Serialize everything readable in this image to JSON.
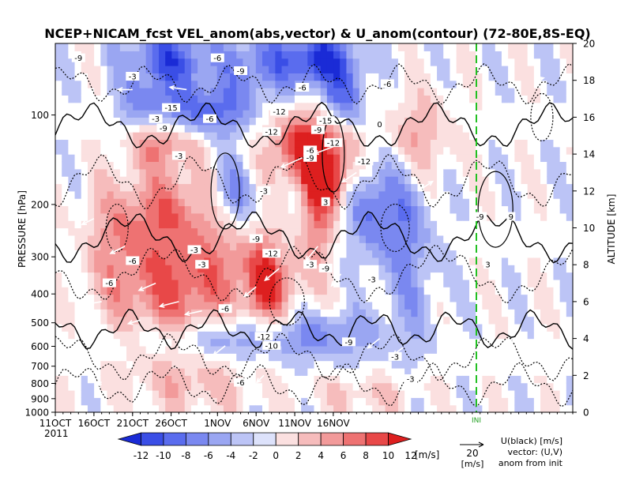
{
  "chart_data": {
    "type": "heatmap",
    "title": "NCEP+NICAM_fcst VEL_anom(abs,vector) & U_anom(contour)   (72-80E,8S-EQ)",
    "ylabel_left": "PRESSURE [hPa]",
    "ylabel_right": "ALTITUDE [km]",
    "pressure_ticks": [
      1000,
      900,
      800,
      700,
      600,
      500,
      400,
      300,
      200,
      100
    ],
    "altitude_ticks": [
      0,
      2,
      4,
      6,
      8,
      10,
      12,
      14,
      16,
      18,
      20
    ],
    "x_ticks": [
      "11OCT",
      "16OCT",
      "21OCT",
      "26OCT",
      "1NOV",
      "6NOV",
      "11NOV",
      "16NOV"
    ],
    "year_label": "2011",
    "init_marker_label": "INI",
    "colorbar": {
      "ticks": [
        "-12",
        "-10",
        "-8",
        "-6",
        "-4",
        "-2",
        "0",
        "2",
        "4",
        "6",
        "8",
        "10",
        "12"
      ],
      "unit": "[m/s]",
      "colors": [
        "#1a2bd6",
        "#3a4ee6",
        "#5a6cee",
        "#7a88f0",
        "#9aa6f2",
        "#bcc4f6",
        "#dde2fb",
        "#fbe0e0",
        "#f6bcbc",
        "#f29a9a",
        "#ee7272",
        "#e84848",
        "#dd1f1f"
      ]
    },
    "vector_ref": {
      "value": "20",
      "unit": "[m/s]"
    },
    "legend_lines": [
      "U(black) [m/s]",
      "vector: (U,V)",
      "anom from init"
    ],
    "contour_labels": [
      "-9",
      "-3",
      "-6",
      "-9",
      "-6",
      "-6",
      "-3",
      "-6",
      "-15",
      "-9",
      "-12",
      "-3",
      "-12",
      "-6",
      "-9",
      "-12",
      "-15",
      "-9",
      "-12",
      "-3",
      "3",
      "-9",
      "-6",
      "-3",
      "-9",
      "-12",
      "-3",
      "-6",
      "-3",
      "-9",
      "-6",
      "-3",
      "-10",
      "-12",
      "-9",
      "-3",
      "-6",
      "-3",
      "0",
      "3",
      "9"
    ],
    "fields": {
      "blobs": [
        {
          "day": 15,
          "alt": 19.2,
          "val": -9,
          "sx": 4.0,
          "sy": 1.1
        },
        {
          "day": 26,
          "alt": 18.8,
          "val": -6,
          "sx": 3.0,
          "sy": 1.2
        },
        {
          "day": 34,
          "alt": 19.2,
          "val": -11,
          "sx": 3.5,
          "sy": 1.0
        },
        {
          "day": 37,
          "alt": 17.0,
          "val": -7,
          "sx": 2.5,
          "sy": 1.2
        },
        {
          "day": 20,
          "alt": 16.4,
          "val": -8,
          "sx": 4.0,
          "sy": 1.0
        },
        {
          "day": 12,
          "alt": 16.8,
          "val": -5,
          "sx": 3.0,
          "sy": 1.0
        },
        {
          "day": 33,
          "alt": 14.4,
          "val": 13,
          "sx": 3.5,
          "sy": 1.4
        },
        {
          "day": 35,
          "alt": 12.6,
          "val": 10,
          "sx": 2.0,
          "sy": 1.0
        },
        {
          "day": 34,
          "alt": 10.6,
          "val": 7,
          "sx": 1.5,
          "sy": 1.4
        },
        {
          "day": 14,
          "alt": 14.6,
          "val": 7,
          "sx": 3.0,
          "sy": 0.9
        },
        {
          "day": 16,
          "alt": 6.6,
          "val": 9,
          "sx": 5.0,
          "sy": 2.6
        },
        {
          "day": 15,
          "alt": 11.2,
          "val": 6,
          "sx": 4.0,
          "sy": 1.6
        },
        {
          "day": 27,
          "alt": 6.8,
          "val": 9,
          "sx": 1.8,
          "sy": 1.8
        },
        {
          "day": 23,
          "alt": 12.0,
          "val": -6,
          "sx": 2.0,
          "sy": 1.2
        },
        {
          "day": 41,
          "alt": 11.0,
          "val": -7,
          "sx": 2.0,
          "sy": 1.8
        },
        {
          "day": 20,
          "alt": 4.0,
          "val": -6,
          "sx": 7.0,
          "sy": 0.8
        },
        {
          "day": 35,
          "alt": 4.2,
          "val": -5,
          "sx": 6.0,
          "sy": 1.0
        },
        {
          "day": 31,
          "alt": 7.4,
          "val": 4,
          "sx": 3.0,
          "sy": 1.5
        },
        {
          "day": 46,
          "alt": 8.0,
          "val": -4,
          "sx": 2.5,
          "sy": 3.0
        },
        {
          "day": 47,
          "alt": 15.0,
          "val": 5,
          "sx": 3.0,
          "sy": 1.6
        },
        {
          "day": 45,
          "alt": 11.0,
          "val": -3,
          "sx": 2.0,
          "sy": 2.0
        },
        {
          "day": 8,
          "alt": 9.0,
          "val": 5,
          "sx": 3.0,
          "sy": 2.5
        },
        {
          "day": 18,
          "alt": 1.4,
          "val": 3,
          "sx": 6.0,
          "sy": 1.0
        },
        {
          "day": 40,
          "alt": 1.0,
          "val": 3,
          "sx": 5.0,
          "sy": 0.8
        },
        {
          "day": 23,
          "alt": 8.2,
          "val": 3,
          "sx": 3.0,
          "sy": 1.5
        }
      ],
      "vectors": [
        {
          "day": 5,
          "alt": 10.5,
          "u": -10,
          "v": -5
        },
        {
          "day": 9,
          "alt": 9.0,
          "u": -12,
          "v": -6
        },
        {
          "day": 13,
          "alt": 7.0,
          "u": -14,
          "v": -6
        },
        {
          "day": 16,
          "alt": 6.0,
          "u": -16,
          "v": -4
        },
        {
          "day": 19,
          "alt": 5.5,
          "u": -14,
          "v": -3
        },
        {
          "day": 6,
          "alt": 6.0,
          "u": -12,
          "v": -2
        },
        {
          "day": 11,
          "alt": 5.0,
          "u": -10,
          "v": -3
        },
        {
          "day": 14,
          "alt": 3.8,
          "u": -12,
          "v": -6
        },
        {
          "day": 22,
          "alt": 3.6,
          "u": -10,
          "v": -8
        },
        {
          "day": 26,
          "alt": 6.8,
          "u": -10,
          "v": -8
        },
        {
          "day": 29,
          "alt": 7.8,
          "u": -12,
          "v": -10
        },
        {
          "day": 32,
          "alt": 13.8,
          "u": -18,
          "v": -8
        },
        {
          "day": 36,
          "alt": 14.4,
          "u": -16,
          "v": -6
        },
        {
          "day": 39,
          "alt": 13.0,
          "u": -12,
          "v": -8
        },
        {
          "day": 34,
          "alt": 9.0,
          "u": -10,
          "v": -12
        },
        {
          "day": 37,
          "alt": 7.5,
          "u": -8,
          "v": -10
        },
        {
          "day": 42,
          "alt": 4.0,
          "u": -10,
          "v": -8
        },
        {
          "day": 45,
          "alt": 3.5,
          "u": -8,
          "v": -6
        },
        {
          "day": 47,
          "alt": 12.0,
          "u": 12,
          "v": 8
        },
        {
          "day": 43,
          "alt": 17.0,
          "u": -10,
          "v": 0
        },
        {
          "day": 17,
          "alt": 17.5,
          "u": -14,
          "v": 2
        },
        {
          "day": 10,
          "alt": 17.5,
          "u": -12,
          "v": 0
        },
        {
          "day": 55,
          "alt": 3.5,
          "u": -10,
          "v": -6
        },
        {
          "day": 60,
          "alt": 4.0,
          "u": -10,
          "v": -4
        },
        {
          "day": 62,
          "alt": 18.0,
          "u": 8,
          "v": 2
        },
        {
          "day": 56,
          "alt": 10.0,
          "u": 4,
          "v": -6
        },
        {
          "day": 27,
          "alt": 2.0,
          "u": -6,
          "v": -6
        },
        {
          "day": 6,
          "alt": 1.5,
          "u": -4,
          "v": 2
        }
      ]
    }
  }
}
